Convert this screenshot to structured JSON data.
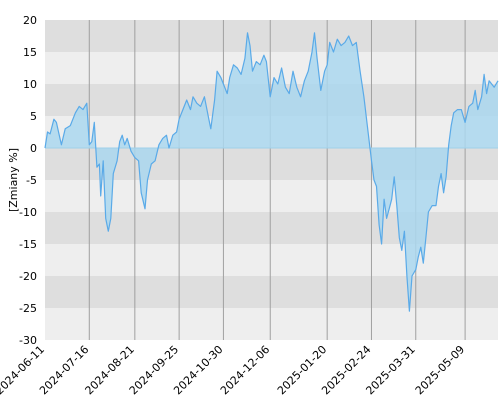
{
  "chart_data": {
    "type": "area",
    "title": "",
    "xlabel": "",
    "ylabel": "[Zmiany %]",
    "ylim": [
      -30,
      20
    ],
    "yticks": [
      20,
      15,
      10,
      5,
      0,
      -5,
      -10,
      -15,
      -20,
      -25,
      -30
    ],
    "xticks": [
      "2024-06-11",
      "2024-07-16",
      "2024-08-21",
      "2024-09-25",
      "2024-10-30",
      "2024-12-06",
      "2025-01-20",
      "2025-02-24",
      "2025-03-31",
      "2025-05-09"
    ],
    "grid": true,
    "series": [
      {
        "points": [
          [
            "2024-06-11",
            0.0
          ],
          [
            "2024-06-13",
            2.5
          ],
          [
            "2024-06-15",
            2.2
          ],
          [
            "2024-06-18",
            4.5
          ],
          [
            "2024-06-20",
            4.0
          ],
          [
            "2024-06-24",
            0.5
          ],
          [
            "2024-06-27",
            3.0
          ],
          [
            "2024-07-01",
            3.5
          ],
          [
            "2024-07-05",
            5.5
          ],
          [
            "2024-07-08",
            6.5
          ],
          [
            "2024-07-11",
            6.0
          ],
          [
            "2024-07-14",
            7.0
          ],
          [
            "2024-07-16",
            0.5
          ],
          [
            "2024-07-18",
            1.0
          ],
          [
            "2024-07-20",
            4.0
          ],
          [
            "2024-07-22",
            -3.0
          ],
          [
            "2024-07-24",
            -2.5
          ],
          [
            "2024-07-25",
            -7.5
          ],
          [
            "2024-07-27",
            -2.0
          ],
          [
            "2024-07-29",
            -11.0
          ],
          [
            "2024-07-31",
            -13.0
          ],
          [
            "2024-08-02",
            -11.0
          ],
          [
            "2024-08-04",
            -4.0
          ],
          [
            "2024-08-07",
            -2.0
          ],
          [
            "2024-08-09",
            1.0
          ],
          [
            "2024-08-11",
            2.0
          ],
          [
            "2024-08-13",
            0.5
          ],
          [
            "2024-08-15",
            1.5
          ],
          [
            "2024-08-18",
            -0.5
          ],
          [
            "2024-08-21",
            -1.5
          ],
          [
            "2024-08-24",
            -2.0
          ],
          [
            "2024-08-26",
            -7.0
          ],
          [
            "2024-08-29",
            -9.5
          ],
          [
            "2024-08-31",
            -5.0
          ],
          [
            "2024-09-03",
            -2.5
          ],
          [
            "2024-09-06",
            -2.0
          ],
          [
            "2024-09-09",
            0.5
          ],
          [
            "2024-09-12",
            1.5
          ],
          [
            "2024-09-15",
            2.0
          ],
          [
            "2024-09-17",
            0.0
          ],
          [
            "2024-09-20",
            2.0
          ],
          [
            "2024-09-23",
            2.5
          ],
          [
            "2024-09-25",
            4.5
          ],
          [
            "2024-09-28",
            6.0
          ],
          [
            "2024-10-01",
            7.5
          ],
          [
            "2024-10-04",
            6.0
          ],
          [
            "2024-10-06",
            8.0
          ],
          [
            "2024-10-09",
            7.0
          ],
          [
            "2024-10-12",
            6.5
          ],
          [
            "2024-10-15",
            8.0
          ],
          [
            "2024-10-18",
            5.0
          ],
          [
            "2024-10-20",
            3.0
          ],
          [
            "2024-10-23",
            7.5
          ],
          [
            "2024-10-25",
            12.0
          ],
          [
            "2024-10-28",
            11.0
          ],
          [
            "2024-10-30",
            10.0
          ],
          [
            "2024-11-02",
            8.5
          ],
          [
            "2024-11-04",
            11.0
          ],
          [
            "2024-11-07",
            13.0
          ],
          [
            "2024-11-10",
            12.5
          ],
          [
            "2024-11-13",
            11.5
          ],
          [
            "2024-11-16",
            14.0
          ],
          [
            "2024-11-18",
            18.0
          ],
          [
            "2024-11-20",
            16.0
          ],
          [
            "2024-11-22",
            12.0
          ],
          [
            "2024-11-25",
            13.5
          ],
          [
            "2024-11-28",
            13.0
          ],
          [
            "2024-12-01",
            14.5
          ],
          [
            "2024-12-03",
            13.5
          ],
          [
            "2024-12-06",
            8.0
          ],
          [
            "2024-12-09",
            11.0
          ],
          [
            "2024-12-12",
            10.0
          ],
          [
            "2024-12-15",
            12.5
          ],
          [
            "2024-12-18",
            9.5
          ],
          [
            "2024-12-21",
            8.5
          ],
          [
            "2024-12-24",
            12.0
          ],
          [
            "2024-12-27",
            9.5
          ],
          [
            "2024-12-30",
            8.0
          ],
          [
            "2025-01-02",
            10.5
          ],
          [
            "2025-01-05",
            12.0
          ],
          [
            "2025-01-08",
            15.0
          ],
          [
            "2025-01-10",
            18.0
          ],
          [
            "2025-01-12",
            14.0
          ],
          [
            "2025-01-15",
            9.0
          ],
          [
            "2025-01-18",
            12.0
          ],
          [
            "2025-01-20",
            13.0
          ],
          [
            "2025-01-22",
            16.5
          ],
          [
            "2025-01-25",
            15.0
          ],
          [
            "2025-01-28",
            17.0
          ],
          [
            "2025-01-31",
            16.0
          ],
          [
            "2025-02-03",
            16.5
          ],
          [
            "2025-02-06",
            17.5
          ],
          [
            "2025-02-09",
            16.0
          ],
          [
            "2025-02-12",
            16.5
          ],
          [
            "2025-02-15",
            12.0
          ],
          [
            "2025-02-18",
            8.0
          ],
          [
            "2025-02-21",
            3.0
          ],
          [
            "2025-02-24",
            -2.0
          ],
          [
            "2025-02-26",
            -5.0
          ],
          [
            "2025-02-28",
            -6.0
          ],
          [
            "2025-03-02",
            -12.0
          ],
          [
            "2025-03-04",
            -15.0
          ],
          [
            "2025-03-06",
            -8.0
          ],
          [
            "2025-03-08",
            -11.0
          ],
          [
            "2025-03-10",
            -9.5
          ],
          [
            "2025-03-12",
            -8.0
          ],
          [
            "2025-03-14",
            -4.5
          ],
          [
            "2025-03-16",
            -9.0
          ],
          [
            "2025-03-18",
            -14.0
          ],
          [
            "2025-03-20",
            -16.0
          ],
          [
            "2025-03-22",
            -13.0
          ],
          [
            "2025-03-24",
            -20.0
          ],
          [
            "2025-03-26",
            -25.5
          ],
          [
            "2025-03-28",
            -20.0
          ],
          [
            "2025-03-31",
            -19.0
          ],
          [
            "2025-04-02",
            -17.0
          ],
          [
            "2025-04-04",
            -15.5
          ],
          [
            "2025-04-06",
            -18.0
          ],
          [
            "2025-04-08",
            -14.0
          ],
          [
            "2025-04-10",
            -10.0
          ],
          [
            "2025-04-13",
            -9.0
          ],
          [
            "2025-04-16",
            -9.0
          ],
          [
            "2025-04-18",
            -6.0
          ],
          [
            "2025-04-20",
            -4.0
          ],
          [
            "2025-04-22",
            -7.0
          ],
          [
            "2025-04-24",
            -4.5
          ],
          [
            "2025-04-26",
            0.5
          ],
          [
            "2025-04-28",
            3.5
          ],
          [
            "2025-04-30",
            5.5
          ],
          [
            "2025-05-03",
            6.0
          ],
          [
            "2025-05-06",
            6.0
          ],
          [
            "2025-05-09",
            4.0
          ],
          [
            "2025-05-12",
            6.5
          ],
          [
            "2025-05-15",
            7.0
          ],
          [
            "2025-05-17",
            9.0
          ],
          [
            "2025-05-19",
            6.0
          ],
          [
            "2025-05-22",
            8.0
          ],
          [
            "2025-05-24",
            11.5
          ],
          [
            "2025-05-26",
            8.5
          ],
          [
            "2025-05-28",
            10.5
          ],
          [
            "2025-06-01",
            9.5
          ],
          [
            "2025-06-04",
            10.5
          ]
        ]
      }
    ],
    "colors": {
      "line": "#5aaae8",
      "fill": "#aad7ee",
      "band_dark": "#dedede",
      "band_light": "#eeeeee",
      "zero_line": "#9ed0ea",
      "grid": "#a0a0a0"
    }
  }
}
